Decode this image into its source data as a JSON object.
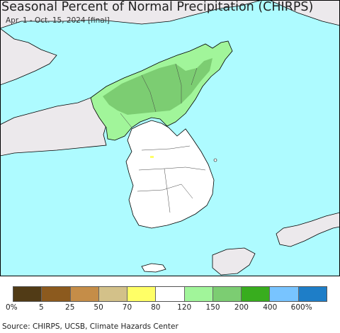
{
  "header": {
    "title": "Seasonal Percent of Normal Precipitation (CHIRPS)",
    "subtitle": "Apr. 1 - Oct. 15, 2024 [final]"
  },
  "colors": {
    "ocean": "#aefbff",
    "land_outside": "#ece9ec",
    "border": "#000000"
  },
  "legend": {
    "colors": [
      "#513b16",
      "#8c5a1e",
      "#c58d48",
      "#d3c189",
      "#ffff66",
      "#ffffff",
      "#a1f59a",
      "#7ccd72",
      "#38ad1e",
      "#78c4ff",
      "#1e7ec8"
    ],
    "labels": [
      "0%",
      "5",
      "25",
      "50",
      "70",
      "80",
      "120",
      "150",
      "200",
      "400",
      "600%"
    ]
  },
  "footer": {
    "source": "Source: CHIRPS, UCSB, Climate Hazards Center"
  }
}
